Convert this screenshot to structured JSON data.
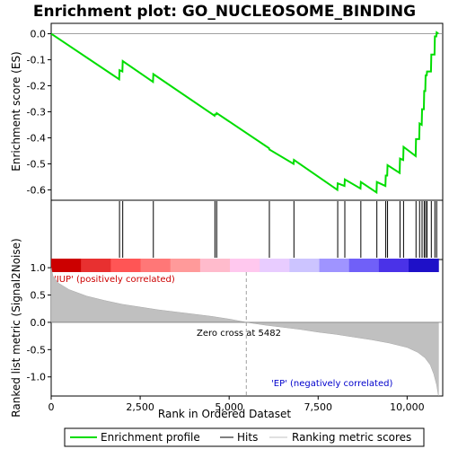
{
  "chart_data": {
    "type": "line",
    "title": "Enrichment plot: GO_NUCLEOSOME_BINDING",
    "xlabel": "Rank in Ordered Dataset",
    "ylabel_top": "Enrichment score (ES)",
    "ylabel_bottom": "Ranked list metric (Signal2Noise)",
    "xlim": [
      0,
      11000
    ],
    "es_ylim": [
      -0.64,
      0.04
    ],
    "metric_ylim": [
      -1.35,
      1.15
    ],
    "x_ticks": [
      0,
      2500,
      5000,
      7500,
      10000
    ],
    "x_tick_labels": [
      "0",
      "2,500",
      "5,000",
      "7,500",
      "10,000"
    ],
    "es_ticks": [
      0.0,
      -0.1,
      -0.2,
      -0.3,
      -0.4,
      -0.5,
      -0.6
    ],
    "es_tick_labels": [
      "0.0",
      "-0.1",
      "-0.2",
      "-0.3",
      "-0.4",
      "-0.5",
      "-0.6"
    ],
    "metric_ticks": [
      1.0,
      0.5,
      0.0,
      -0.5,
      -1.0
    ],
    "metric_tick_labels": [
      "1.0",
      "0.5",
      "0.0",
      "-0.5",
      "-1.0"
    ],
    "hits": [
      1920,
      2010,
      2870,
      4600,
      4650,
      6130,
      6820,
      8050,
      8250,
      8700,
      9150,
      9400,
      9450,
      9800,
      9900,
      10250,
      10350,
      10420,
      10480,
      10520,
      10560,
      10680,
      10780,
      10830
    ],
    "es_profile": {
      "x": [
        0,
        1910,
        1920,
        2000,
        2010,
        2860,
        2870,
        4590,
        4600,
        4640,
        4650,
        6120,
        6130,
        6810,
        6820,
        8040,
        8050,
        8240,
        8250,
        8690,
        8700,
        9140,
        9150,
        9390,
        9400,
        9440,
        9450,
        9790,
        9800,
        9890,
        9900,
        10240,
        10250,
        10340,
        10350,
        10410,
        10420,
        10470,
        10480,
        10510,
        10520,
        10550,
        10560,
        10670,
        10680,
        10770,
        10780,
        10820,
        10830,
        10880
      ],
      "y": [
        0.0,
        -0.175,
        -0.14,
        -0.145,
        -0.105,
        -0.185,
        -0.155,
        -0.315,
        -0.31,
        -0.31,
        -0.305,
        -0.44,
        -0.445,
        -0.5,
        -0.485,
        -0.6,
        -0.575,
        -0.585,
        -0.56,
        -0.595,
        -0.57,
        -0.61,
        -0.57,
        -0.585,
        -0.545,
        -0.545,
        -0.505,
        -0.535,
        -0.48,
        -0.485,
        -0.435,
        -0.47,
        -0.405,
        -0.405,
        -0.345,
        -0.35,
        -0.29,
        -0.29,
        -0.22,
        -0.22,
        -0.16,
        -0.16,
        -0.145,
        -0.145,
        -0.08,
        -0.08,
        -0.01,
        -0.01,
        0.005,
        0.0
      ]
    },
    "metric_profile": {
      "x": [
        0,
        50,
        200,
        500,
        1000,
        1500,
        2000,
        2500,
        3000,
        3500,
        4000,
        4500,
        5000,
        5482,
        6000,
        6500,
        7000,
        7500,
        8000,
        8500,
        9000,
        9500,
        10000,
        10300,
        10500,
        10650,
        10750,
        10830,
        10880
      ],
      "y": [
        1.0,
        0.85,
        0.72,
        0.6,
        0.48,
        0.4,
        0.33,
        0.28,
        0.23,
        0.19,
        0.15,
        0.11,
        0.06,
        0.0,
        -0.05,
        -0.09,
        -0.13,
        -0.18,
        -0.22,
        -0.27,
        -0.32,
        -0.38,
        -0.46,
        -0.55,
        -0.65,
        -0.78,
        -0.95,
        -1.15,
        -1.35
      ]
    },
    "zero_cross_x": 5482,
    "zero_cross_label": "Zero cross at 5482",
    "pos_label": "'IUP' (positively correlated)",
    "neg_label": "'EP' (negatively correlated)",
    "legend": [
      "Enrichment profile",
      "Hits",
      "Ranking metric scores"
    ],
    "colors": {
      "es_line": "#00dd00",
      "hit_line": "#000000",
      "metric_fill": "#c0c0c0",
      "pos_label": "#cc0000",
      "neg_label": "#0000cc",
      "zero_line": "#a0a0a0"
    },
    "heatmap_colors": [
      "#cc0000",
      "#e83030",
      "#ff5555",
      "#ff7777",
      "#ff9a9a",
      "#ffbbcc",
      "#ffc8ee",
      "#e8ccff",
      "#ccc4ff",
      "#9f94ff",
      "#7060f8",
      "#4a32e8",
      "#1e10c8"
    ]
  }
}
